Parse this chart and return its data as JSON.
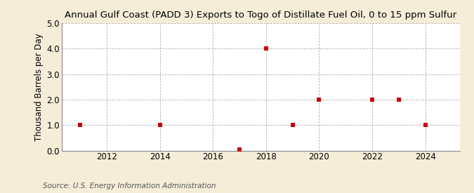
{
  "title": "Annual Gulf Coast (PADD 3) Exports to Togo of Distillate Fuel Oil, 0 to 15 ppm Sulfur",
  "ylabel": "Thousand Barrels per Day",
  "source": "Source: U.S. Energy Information Administration",
  "background_color": "#f5edd8",
  "plot_background_color": "#ffffff",
  "data_x": [
    2011,
    2014,
    2017,
    2018,
    2019,
    2020,
    2022,
    2023,
    2024
  ],
  "data_y": [
    1.0,
    1.0,
    0.04,
    4.0,
    1.0,
    2.0,
    2.0,
    2.0,
    1.0
  ],
  "marker_color": "#cc0000",
  "marker_size": 4,
  "xlim": [
    2010.3,
    2025.3
  ],
  "ylim": [
    0.0,
    5.0
  ],
  "yticks": [
    0.0,
    1.0,
    2.0,
    3.0,
    4.0,
    5.0
  ],
  "xticks": [
    2012,
    2014,
    2016,
    2018,
    2020,
    2022,
    2024
  ],
  "grid_color": "#aaaaaa",
  "title_fontsize": 9.5,
  "axis_fontsize": 8.5,
  "source_fontsize": 7.5
}
